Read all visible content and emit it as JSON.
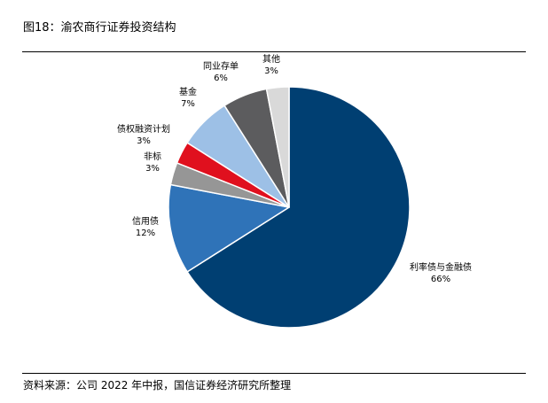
{
  "figure_title": "图18：渝农商行证券投资结构",
  "source_note": "资料来源：公司 2022 年中报，国信证券经济研究所整理",
  "chart_data": {
    "type": "pie",
    "title": "",
    "slices": [
      {
        "label": "利率债与金融债",
        "value_label": "66%",
        "value": 66,
        "color": "#003f72"
      },
      {
        "label": "信用债",
        "value_label": "12%",
        "value": 12,
        "color": "#2f73b8"
      },
      {
        "label": "非标",
        "value_label": "3%",
        "value": 3,
        "color": "#969696"
      },
      {
        "label": "债权融资计划",
        "value_label": "3%",
        "value": 3,
        "color": "#e0101e"
      },
      {
        "label": "基金",
        "value_label": "7%",
        "value": 7,
        "color": "#9dc0e6"
      },
      {
        "label": "同业存单",
        "value_label": "6%",
        "value": 6,
        "color": "#5c5c5e"
      },
      {
        "label": "其他",
        "value_label": "3%",
        "value": 3,
        "color": "#d9d9d9"
      }
    ],
    "start": "12 o'clock",
    "direction": "clockwise",
    "legend": "none"
  }
}
